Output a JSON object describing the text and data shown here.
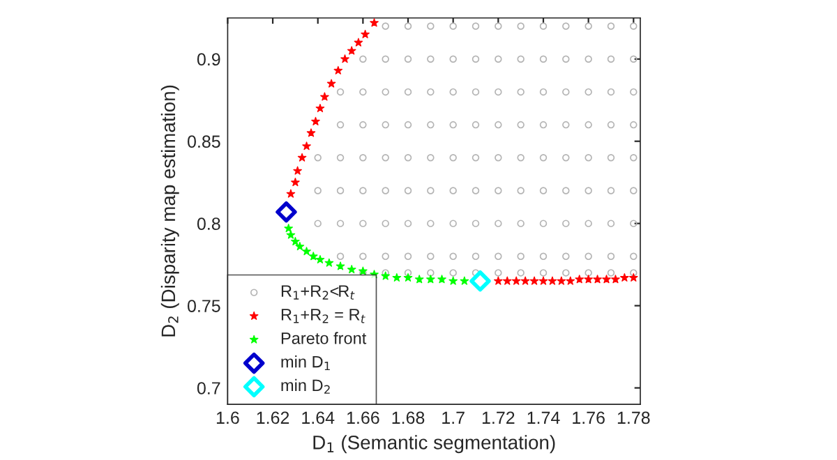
{
  "chart_data": {
    "type": "scatter",
    "xlabel": "D$_{1}$ (Semantic segmentation)",
    "ylabel": "D$_{2}$ (Disparity map estimation)",
    "xlim": [
      1.6,
      1.783
    ],
    "ylim": [
      0.69,
      0.925
    ],
    "xticks": [
      1.6,
      1.62,
      1.64,
      1.66,
      1.68,
      1.7,
      1.72,
      1.74,
      1.76,
      1.78
    ],
    "yticks": [
      0.7,
      0.75,
      0.8,
      0.85,
      0.9
    ],
    "grid": false,
    "legend": "bottom left",
    "series": [
      {
        "name": "R$_{1}$+R$_{2}$<R$_{t}$",
        "color": "#b4b4b4",
        "marker": "circle",
        "x": [
          1.64,
          1.64,
          1.64,
          1.65,
          1.65,
          1.65,
          1.65,
          1.65,
          1.65,
          1.66,
          1.66,
          1.66,
          1.66,
          1.66,
          1.66,
          1.66,
          1.66,
          1.67,
          1.67,
          1.67,
          1.67,
          1.67,
          1.67,
          1.67,
          1.67,
          1.67,
          1.68,
          1.68,
          1.68,
          1.68,
          1.68,
          1.68,
          1.68,
          1.68,
          1.68,
          1.69,
          1.69,
          1.69,
          1.69,
          1.69,
          1.69,
          1.69,
          1.69,
          1.69,
          1.7,
          1.7,
          1.7,
          1.7,
          1.7,
          1.7,
          1.7,
          1.7,
          1.7,
          1.71,
          1.71,
          1.71,
          1.71,
          1.71,
          1.71,
          1.71,
          1.71,
          1.71,
          1.72,
          1.72,
          1.72,
          1.72,
          1.72,
          1.72,
          1.72,
          1.72,
          1.72,
          1.73,
          1.73,
          1.73,
          1.73,
          1.73,
          1.73,
          1.73,
          1.73,
          1.73,
          1.74,
          1.74,
          1.74,
          1.74,
          1.74,
          1.74,
          1.74,
          1.74,
          1.74,
          1.75,
          1.75,
          1.75,
          1.75,
          1.75,
          1.75,
          1.75,
          1.75,
          1.75,
          1.76,
          1.76,
          1.76,
          1.76,
          1.76,
          1.76,
          1.76,
          1.76,
          1.76,
          1.77,
          1.77,
          1.77,
          1.77,
          1.77,
          1.77,
          1.77,
          1.77,
          1.77,
          1.78,
          1.78,
          1.78,
          1.78,
          1.78,
          1.78,
          1.78,
          1.78,
          1.78
        ],
        "values": [
          0.8,
          0.82,
          0.84,
          0.78,
          0.8,
          0.82,
          0.84,
          0.86,
          0.88,
          0.77,
          0.78,
          0.8,
          0.82,
          0.84,
          0.86,
          0.88,
          0.9,
          0.77,
          0.78,
          0.8,
          0.82,
          0.84,
          0.86,
          0.88,
          0.9,
          0.92,
          0.77,
          0.78,
          0.8,
          0.82,
          0.84,
          0.86,
          0.88,
          0.9,
          0.92,
          0.77,
          0.78,
          0.8,
          0.82,
          0.84,
          0.86,
          0.88,
          0.9,
          0.92,
          0.77,
          0.78,
          0.8,
          0.82,
          0.84,
          0.86,
          0.88,
          0.9,
          0.92,
          0.77,
          0.78,
          0.8,
          0.82,
          0.84,
          0.86,
          0.88,
          0.9,
          0.92,
          0.77,
          0.78,
          0.8,
          0.82,
          0.84,
          0.86,
          0.88,
          0.9,
          0.92,
          0.77,
          0.78,
          0.8,
          0.82,
          0.84,
          0.86,
          0.88,
          0.9,
          0.92,
          0.77,
          0.78,
          0.8,
          0.82,
          0.84,
          0.86,
          0.88,
          0.9,
          0.92,
          0.77,
          0.78,
          0.8,
          0.82,
          0.84,
          0.86,
          0.88,
          0.9,
          0.92,
          0.77,
          0.78,
          0.8,
          0.82,
          0.84,
          0.86,
          0.88,
          0.9,
          0.92,
          0.77,
          0.78,
          0.8,
          0.82,
          0.84,
          0.86,
          0.88,
          0.9,
          0.92,
          0.77,
          0.78,
          0.8,
          0.82,
          0.84,
          0.86,
          0.88,
          0.9,
          0.92
        ]
      },
      {
        "name": "R$_{1}$+R$_{2}$ = R$_{t}$",
        "color": "#ff0000",
        "marker": "star",
        "x": [
          1.665,
          1.661,
          1.658,
          1.655,
          1.652,
          1.649,
          1.646,
          1.643,
          1.641,
          1.639,
          1.637,
          1.635,
          1.633,
          1.631,
          1.63,
          1.628,
          1.72,
          1.724,
          1.728,
          1.732,
          1.736,
          1.74,
          1.744,
          1.748,
          1.752,
          1.756,
          1.76,
          1.764,
          1.768,
          1.772,
          1.776,
          1.78
        ],
        "values": [
          0.922,
          0.915,
          0.91,
          0.905,
          0.9,
          0.893,
          0.885,
          0.877,
          0.87,
          0.862,
          0.855,
          0.847,
          0.84,
          0.832,
          0.825,
          0.818,
          0.765,
          0.765,
          0.765,
          0.765,
          0.765,
          0.765,
          0.765,
          0.765,
          0.765,
          0.766,
          0.766,
          0.766,
          0.766,
          0.766,
          0.767,
          0.767
        ]
      },
      {
        "name": "Pareto front",
        "color": "#00ff00",
        "marker": "star",
        "x": [
          1.627,
          1.628,
          1.63,
          1.632,
          1.635,
          1.638,
          1.641,
          1.645,
          1.65,
          1.655,
          1.66,
          1.665,
          1.67,
          1.675,
          1.68,
          1.685,
          1.69,
          1.695,
          1.7,
          1.705
        ],
        "values": [
          0.797,
          0.793,
          0.789,
          0.786,
          0.783,
          0.78,
          0.778,
          0.776,
          0.774,
          0.772,
          0.771,
          0.769,
          0.768,
          0.767,
          0.767,
          0.766,
          0.766,
          0.766,
          0.765,
          0.765
        ]
      },
      {
        "name": "min D$_{1}$",
        "color": "#0000cc",
        "marker": "diamond",
        "x": [
          1.626
        ],
        "values": [
          0.807
        ]
      },
      {
        "name": "min D$_{2}$",
        "color": "#00ffff",
        "marker": "diamond",
        "x": [
          1.712
        ],
        "values": [
          0.765
        ]
      }
    ]
  }
}
